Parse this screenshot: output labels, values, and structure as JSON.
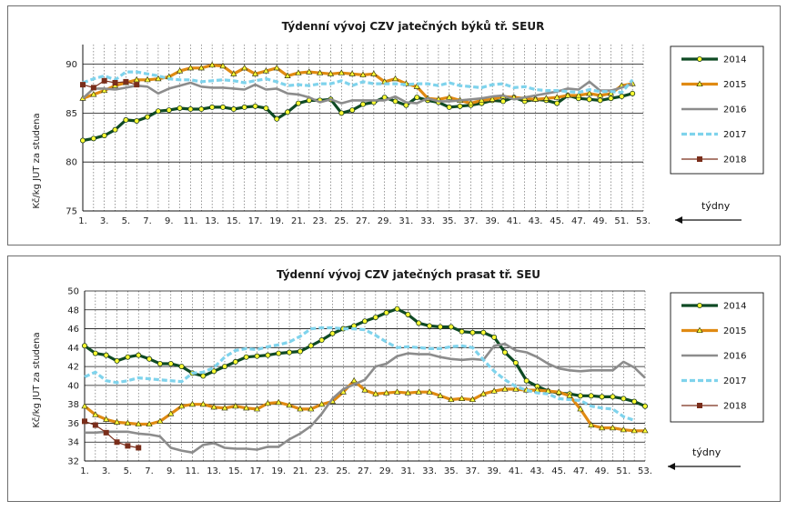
{
  "chart_data": [
    {
      "type": "line",
      "title": "Týdenní  vývoj CZV jatečných býků tř. SEUR",
      "ylabel": "Kč/kg JUT za studena",
      "ylim": [
        75,
        92
      ],
      "yticks": [
        75,
        80,
        85,
        90
      ],
      "grid": true,
      "legend_position": "right",
      "xticks": [
        "1.",
        "3.",
        "5.",
        "7.",
        "9.",
        "11.",
        "13.",
        "15.",
        "17.",
        "19.",
        "21.",
        "23.",
        "25.",
        "27.",
        "29.",
        "31.",
        "33.",
        "35.",
        "37.",
        "39.",
        "41.",
        "43.",
        "45.",
        "47.",
        "49.",
        "51.",
        "53."
      ],
      "annotation": "týdny",
      "series": [
        {
          "name": "2014",
          "color": "#0f4a24",
          "marker": "circle",
          "values": [
            82.2,
            82.4,
            82.7,
            83.3,
            84.3,
            84.2,
            84.6,
            85.2,
            85.3,
            85.5,
            85.4,
            85.4,
            85.6,
            85.6,
            85.4,
            85.6,
            85.7,
            85.5,
            84.4,
            85.1,
            86.0,
            86.3,
            86.3,
            86.4,
            85.0,
            85.3,
            85.9,
            86.1,
            86.6,
            86.2,
            85.8,
            86.6,
            86.3,
            86.1,
            85.6,
            85.7,
            85.8,
            86.0,
            86.3,
            86.2,
            86.6,
            86.2,
            86.4,
            86.3,
            86.0,
            86.8,
            86.5,
            86.4,
            86.3,
            86.5,
            86.7,
            87.0
          ]
        },
        {
          "name": "2015",
          "color": "#e08a12",
          "marker": "triangle",
          "values": [
            86.5,
            86.9,
            87.3,
            87.8,
            88.1,
            88.4,
            88.4,
            88.5,
            88.7,
            89.3,
            89.6,
            89.6,
            89.9,
            89.8,
            89.0,
            89.6,
            89.0,
            89.3,
            89.6,
            88.8,
            89.1,
            89.2,
            89.1,
            89.0,
            89.1,
            89.0,
            88.9,
            89.0,
            88.2,
            88.5,
            88.0,
            87.7,
            86.5,
            86.4,
            86.6,
            86.3,
            86.0,
            86.3,
            86.4,
            86.7,
            86.6,
            86.5,
            86.4,
            86.5,
            86.6,
            86.8,
            86.8,
            87.0,
            86.8,
            87.0,
            87.8,
            88.0
          ]
        },
        {
          "name": "2016",
          "color": "#8c8c8c",
          "marker": "none",
          "values": [
            86.5,
            87.5,
            87.5,
            87.4,
            87.6,
            87.8,
            87.7,
            87.0,
            87.5,
            87.8,
            88.1,
            87.7,
            87.6,
            87.6,
            87.5,
            87.4,
            87.9,
            87.4,
            87.5,
            87.0,
            86.9,
            86.6,
            86.1,
            86.4,
            86.0,
            86.3,
            86.3,
            86.3,
            86.3,
            86.7,
            86.1,
            86.0,
            86.5,
            86.2,
            86.2,
            86.3,
            86.4,
            86.5,
            86.7,
            86.8,
            86.4,
            86.6,
            86.8,
            87.0,
            87.2,
            87.5,
            87.4,
            88.2,
            87.3,
            87.3,
            87.6,
            88.0
          ]
        },
        {
          "name": "2017",
          "color": "#7fd3ec",
          "marker": "none",
          "values": [
            88.1,
            88.5,
            88.8,
            88.4,
            89.2,
            89.2,
            89.0,
            88.8,
            88.5,
            88.4,
            88.4,
            88.2,
            88.3,
            88.4,
            88.3,
            88.1,
            88.3,
            88.5,
            88.2,
            87.8,
            87.9,
            87.8,
            88.0,
            88.0,
            88.3,
            87.8,
            88.2,
            88.0,
            88.0,
            88.0,
            87.9,
            88.0,
            88.0,
            87.8,
            88.1,
            87.8,
            87.7,
            87.6,
            87.9,
            88.0,
            87.6,
            87.7,
            87.4,
            87.3,
            87.3,
            87.2,
            87.1,
            87.4,
            87.2,
            87.2,
            87.1,
            88.4
          ]
        },
        {
          "name": "2018",
          "color": "#7a2e1b",
          "marker": "square",
          "values": [
            87.9,
            87.6,
            88.3,
            88.1,
            88.2,
            87.9
          ]
        }
      ]
    },
    {
      "type": "line",
      "title": "Týdenní  vývoj CZV jatečných prasat tř. SEU",
      "ylabel": "Kč/kg JUT za studena",
      "ylim": [
        32,
        50
      ],
      "yticks": [
        32,
        34,
        36,
        38,
        40,
        42,
        44,
        46,
        48,
        50
      ],
      "grid": true,
      "legend_position": "right",
      "xticks": [
        "1.",
        "3.",
        "5.",
        "7.",
        "9.",
        "11.",
        "13.",
        "15.",
        "17.",
        "19.",
        "21.",
        "23.",
        "25.",
        "27.",
        "29.",
        "31.",
        "33.",
        "35.",
        "37.",
        "39.",
        "41.",
        "43.",
        "45.",
        "47.",
        "49.",
        "51.",
        "53."
      ],
      "annotation": "týdny",
      "series": [
        {
          "name": "2014",
          "color": "#0f4a24",
          "marker": "circle",
          "values": [
            44.2,
            43.4,
            43.2,
            42.6,
            43.0,
            43.2,
            42.8,
            42.3,
            42.3,
            42.0,
            41.3,
            41.0,
            41.5,
            42.0,
            42.5,
            43.0,
            43.1,
            43.2,
            43.4,
            43.5,
            43.6,
            44.2,
            44.8,
            45.5,
            46.0,
            46.3,
            46.8,
            47.2,
            47.7,
            48.1,
            47.5,
            46.6,
            46.3,
            46.2,
            46.2,
            45.7,
            45.6,
            45.6,
            45.1,
            43.5,
            42.4,
            40.5,
            39.9,
            39.4,
            39.2,
            39.1,
            38.9,
            38.9,
            38.8,
            38.8,
            38.6,
            38.3,
            37.8
          ]
        },
        {
          "name": "2015",
          "color": "#e08a12",
          "marker": "triangle",
          "values": [
            37.8,
            36.9,
            36.4,
            36.1,
            36.0,
            35.9,
            35.9,
            36.2,
            37.0,
            37.8,
            38.0,
            38.0,
            37.7,
            37.6,
            37.8,
            37.6,
            37.5,
            38.1,
            38.2,
            37.9,
            37.5,
            37.5,
            38.0,
            38.3,
            39.3,
            40.5,
            39.5,
            39.1,
            39.2,
            39.3,
            39.2,
            39.3,
            39.3,
            38.9,
            38.5,
            38.6,
            38.5,
            39.1,
            39.4,
            39.6,
            39.6,
            39.5,
            39.5,
            39.4,
            39.3,
            38.9,
            37.5,
            35.8,
            35.5,
            35.5,
            35.3,
            35.2,
            35.2
          ]
        },
        {
          "name": "2016",
          "color": "#8c8c8c",
          "marker": "none",
          "values": [
            35.0,
            35.0,
            35.1,
            35.1,
            35.1,
            34.9,
            34.8,
            34.6,
            33.4,
            33.1,
            32.9,
            33.7,
            33.9,
            33.4,
            33.3,
            33.3,
            33.2,
            33.5,
            33.5,
            34.3,
            34.9,
            35.7,
            37.0,
            38.6,
            39.6,
            40.1,
            40.6,
            42.0,
            42.3,
            43.1,
            43.4,
            43.3,
            43.3,
            43.0,
            42.8,
            42.7,
            42.8,
            42.7,
            44.2,
            44.4,
            43.7,
            43.5,
            43.0,
            42.3,
            41.8,
            41.6,
            41.5,
            41.6,
            41.6,
            41.6,
            42.5,
            41.9,
            40.8
          ]
        },
        {
          "name": "2017",
          "color": "#7fd3ec",
          "marker": "none",
          "values": [
            40.9,
            41.4,
            40.5,
            40.3,
            40.5,
            40.8,
            40.7,
            40.6,
            40.5,
            40.4,
            41.3,
            41.4,
            41.9,
            43.0,
            43.7,
            43.9,
            43.8,
            44.1,
            44.3,
            44.6,
            45.2,
            46.0,
            46.1,
            46.1,
            46.0,
            46.0,
            45.9,
            45.3,
            44.6,
            44.0,
            44.1,
            44.0,
            43.9,
            43.9,
            44.1,
            44.2,
            44.0,
            42.7,
            41.5,
            40.6,
            39.9,
            39.5,
            39.2,
            39.1,
            38.6,
            38.5,
            38.4,
            37.8,
            37.6,
            37.5,
            36.7,
            36.3
          ]
        },
        {
          "name": "2018",
          "color": "#7a2e1b",
          "marker": "square",
          "values": [
            36.2,
            35.8,
            35.0,
            34.0,
            33.6,
            33.4
          ]
        }
      ]
    }
  ]
}
